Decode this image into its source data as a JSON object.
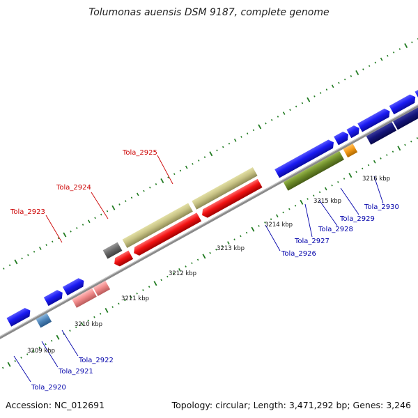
{
  "title": "Tolumonas auensis DSM 9187, complete genome",
  "footer": {
    "accession": "Accession: NC_012691",
    "stats": "Topology: circular; Length: 3,471,292 bp; Genes: 3,246"
  },
  "colors": {
    "forward_strand": "#1515ee",
    "reverse_strand": "#ee1111",
    "backbone": "#888888",
    "label_red": "#cc0000",
    "label_blue": "#0000aa",
    "tick": "#1f7a1f"
  },
  "tick_labels": [
    "3209 kbp",
    "3210 kbp",
    "3211 kbp",
    "3212 kbp",
    "3213 kbp",
    "3214 kbp",
    "3215 kbp",
    "3216 kbp"
  ],
  "gene_labels": [
    {
      "name": "Tola_2920",
      "color": "blue"
    },
    {
      "name": "Tola_2921",
      "color": "blue"
    },
    {
      "name": "Tola_2922",
      "color": "blue"
    },
    {
      "name": "Tola_2923",
      "color": "red"
    },
    {
      "name": "Tola_2924",
      "color": "red"
    },
    {
      "name": "Tola_2925",
      "color": "red"
    },
    {
      "name": "Tola_2926",
      "color": "blue"
    },
    {
      "name": "Tola_2927",
      "color": "blue"
    },
    {
      "name": "Tola_2928",
      "color": "blue"
    },
    {
      "name": "Tola_2929",
      "color": "blue"
    },
    {
      "name": "Tola_2930",
      "color": "blue"
    }
  ]
}
